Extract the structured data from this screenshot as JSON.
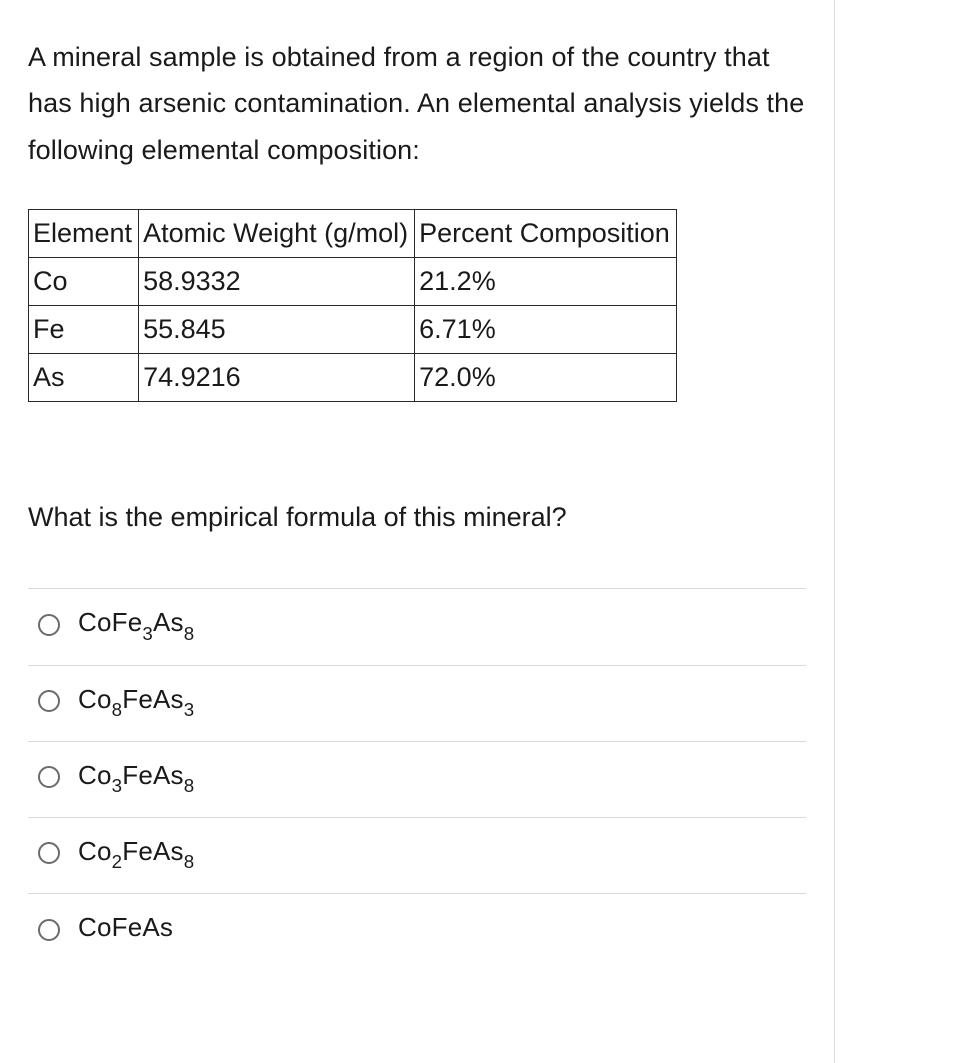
{
  "prompt_text": "A mineral sample is obtained from a region of the country that has high arsenic contamination. An elemental analysis yields the following elemental composition:",
  "table": {
    "headers": [
      "Element",
      "Atomic Weight (g/mol)",
      "Percent Composition"
    ],
    "rows": [
      [
        "Co",
        "58.9332",
        "21.2%"
      ],
      [
        "Fe",
        "55.845",
        "6.71%"
      ],
      [
        "As",
        "74.9216",
        "72.0%"
      ]
    ]
  },
  "question_text": "What is the empirical formula of this mineral?",
  "options": [
    {
      "base": "Co",
      "sub1": "",
      "mid": "Fe",
      "sub2": "3",
      "tail": "As",
      "sub3": "8"
    },
    {
      "base": "Co",
      "sub1": "8",
      "mid": "Fe",
      "sub2": "",
      "tail": "As",
      "sub3": "3"
    },
    {
      "base": "Co",
      "sub1": "3",
      "mid": "Fe",
      "sub2": "",
      "tail": "As",
      "sub3": "8"
    },
    {
      "base": "Co",
      "sub1": "2",
      "mid": "Fe",
      "sub2": "",
      "tail": "As",
      "sub3": "8"
    },
    {
      "base": "Co",
      "sub1": "",
      "mid": "Fe",
      "sub2": "",
      "tail": "As",
      "sub3": ""
    }
  ]
}
